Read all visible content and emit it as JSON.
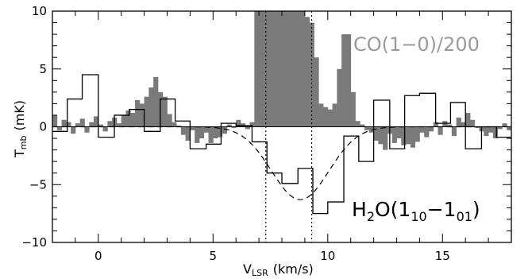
{
  "chart_data": {
    "type": "line",
    "xlabel_main": "V",
    "xlabel_sub": "LSR",
    "xlabel_unit": "(km/s)",
    "ylabel_main": "T",
    "ylabel_sub": "mb",
    "ylabel_unit": "(mK)",
    "xlim": [
      -2,
      18
    ],
    "ylim": [
      -10,
      10
    ],
    "x_ticks": [
      0,
      5,
      10,
      15
    ],
    "y_ticks": [
      -10,
      -5,
      0,
      5,
      10
    ],
    "x_tick_labels": [
      "0",
      "5",
      "10",
      "15"
    ],
    "y_tick_labels": [
      "−10",
      "−5",
      "0",
      "5",
      "10"
    ],
    "vlines": [
      7.3,
      9.3
    ],
    "annotations": {
      "co_label": "CO(1−0)/200",
      "h2o_main": "H",
      "h2o_sub1": "2",
      "h2o_mid": "O(1",
      "h2o_sub2": "10",
      "h2o_dash": "−1",
      "h2o_sub3": "01",
      "h2o_end": ")"
    },
    "co_bins": {
      "x0": -2.0,
      "width": 0.2,
      "values": [
        1.0,
        -0.3,
        0.6,
        0.4,
        -0.6,
        0.3,
        0.7,
        -0.5,
        0.4,
        0.9,
        0.2,
        -0.4,
        0.5,
        0.8,
        0.3,
        1.0,
        1.4,
        1.2,
        2.3,
        2.0,
        2.6,
        3.4,
        4.3,
        3.0,
        2.6,
        1.1,
        0.4,
        0.1,
        -0.7,
        -1.2,
        -0.3,
        -1.4,
        -1.0,
        -0.5,
        -1.4,
        -1.0,
        -0.9,
        -0.6,
        0.2,
        -0.1,
        0.6,
        0.3,
        -0.2,
        0.4,
        10.0,
        10.0,
        10.0,
        10.0,
        10.0,
        10.0,
        10.0,
        10.0,
        10.0,
        10.0,
        10.0,
        9.5,
        9.0,
        6.0,
        2.0,
        1.7,
        1.5,
        2.0,
        5.0,
        8.0,
        8.0,
        3.0,
        0.5,
        0.2,
        -0.3,
        -0.5,
        -1.2,
        -1.5,
        -2.0,
        -0.6,
        -1.4,
        -1.0,
        -1.6,
        -1.5,
        -1.8,
        -1.3,
        -0.5,
        -0.9,
        -0.4,
        0.4,
        -0.7,
        0.5,
        0.2,
        -0.8,
        0.8,
        0.4,
        1.2,
        0.6,
        -0.1,
        -0.4,
        -0.8,
        -0.5,
        -1.0,
        -0.2,
        0.3,
        -0.3
      ]
    },
    "h2o_steps": {
      "edges": [
        -2.0,
        -1.35,
        -0.7,
        0.0,
        0.7,
        1.35,
        2.0,
        2.7,
        3.35,
        4.0,
        4.7,
        5.35,
        6.0,
        6.7,
        7.35,
        8.0,
        8.7,
        9.35,
        10.0,
        10.7,
        11.35,
        12.0,
        12.7,
        13.35,
        14.0,
        14.7,
        15.35,
        16.0,
        16.7,
        17.35,
        18.0
      ],
      "values": [
        -0.4,
        2.4,
        4.5,
        -0.9,
        1.0,
        1.5,
        -0.4,
        2.4,
        0.5,
        -1.9,
        -1.5,
        0.3,
        0.1,
        -1.3,
        -4.0,
        -4.9,
        -3.6,
        -7.5,
        -6.5,
        -0.8,
        -3.0,
        2.3,
        -1.9,
        2.7,
        2.9,
        0.3,
        2.1,
        -1.9,
        0.0,
        -0.9
      ]
    },
    "gaussian_fit": {
      "amplitude": -6.3,
      "center": 8.8,
      "sigma": 1.25
    }
  }
}
